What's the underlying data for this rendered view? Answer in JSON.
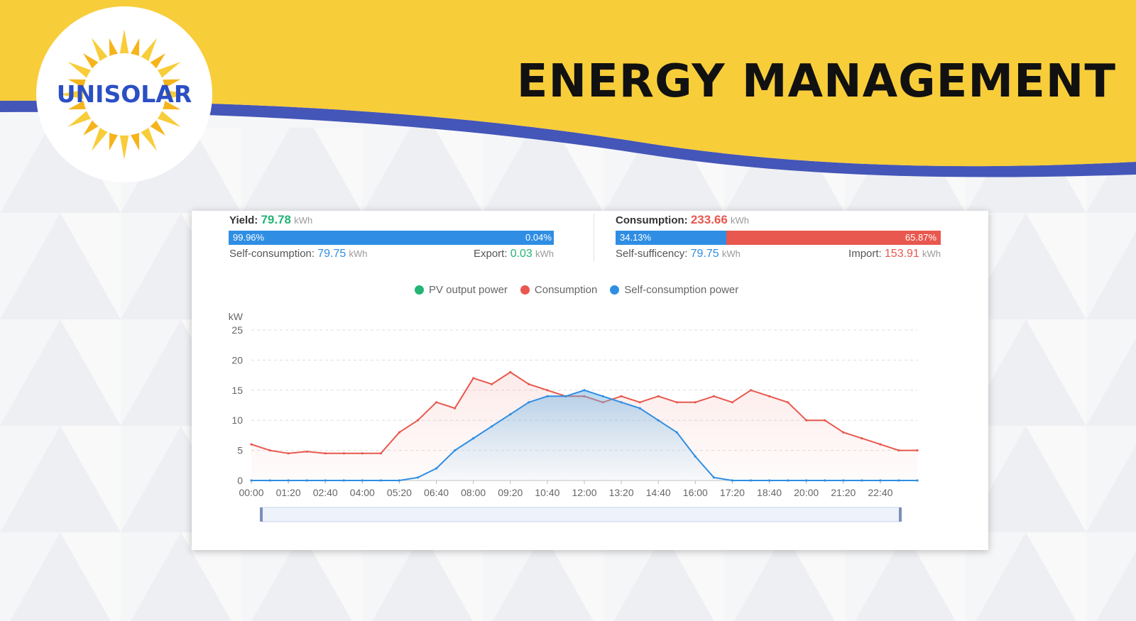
{
  "brand": {
    "logo_text": "UNISOLAR"
  },
  "headline": "ENERGY MANAGEMENT",
  "colors": {
    "yellow": "#f8cd3a",
    "blue_band": "#4456b8",
    "green": "#22b573",
    "red": "#e8584e",
    "blue": "#2f8ee3"
  },
  "summary": {
    "yield": {
      "label": "Yield:",
      "value": "79.78",
      "unit": "kWh",
      "bar": {
        "left_pct": "99.96%",
        "right_pct": "0.04%",
        "left_fraction": 0.9996
      },
      "self_consumption": {
        "label": "Self-consumption:",
        "value": "79.75",
        "unit": "kWh"
      },
      "export": {
        "label": "Export:",
        "value": "0.03",
        "unit": "kWh"
      }
    },
    "consumption": {
      "label": "Consumption:",
      "value": "233.66",
      "unit": "kWh",
      "bar": {
        "left_pct": "34.13%",
        "right_pct": "65.87%",
        "left_fraction": 0.3413
      },
      "self_sufficiency": {
        "label": "Self-sufficency:",
        "value": "79.75",
        "unit": "kWh"
      },
      "import": {
        "label": "Import:",
        "value": "153.91",
        "unit": "kWh"
      }
    }
  },
  "legend": [
    {
      "name": "PV output power",
      "color": "#22b573"
    },
    {
      "name": "Consumption",
      "color": "#e8584e"
    },
    {
      "name": "Self-consumption power",
      "color": "#2f8ee3"
    }
  ],
  "chart_data": {
    "type": "line",
    "ylabel": "kW",
    "ylim": [
      0,
      25
    ],
    "yticks": [
      0,
      5,
      10,
      15,
      20,
      25
    ],
    "xticks": [
      "00:00",
      "01:20",
      "02:40",
      "04:00",
      "05:20",
      "06:40",
      "08:00",
      "09:20",
      "10:40",
      "12:00",
      "13:20",
      "14:40",
      "16:00",
      "17:20",
      "18:40",
      "20:00",
      "21:20",
      "22:40"
    ],
    "x": [
      "00:00",
      "00:40",
      "01:20",
      "02:00",
      "02:40",
      "03:20",
      "04:00",
      "04:40",
      "05:20",
      "06:00",
      "06:40",
      "07:20",
      "08:00",
      "08:40",
      "09:20",
      "10:00",
      "10:40",
      "11:20",
      "12:00",
      "12:40",
      "13:20",
      "14:00",
      "14:40",
      "15:20",
      "16:00",
      "16:40",
      "17:20",
      "18:00",
      "18:40",
      "19:20",
      "20:00",
      "20:40",
      "21:20",
      "22:00",
      "22:40",
      "23:20",
      "24:00"
    ],
    "grid": true,
    "legend_position": "top",
    "series": [
      {
        "name": "Consumption",
        "color": "#e8584e",
        "values": [
          6,
          5,
          4.5,
          4.8,
          4.5,
          4.5,
          4.5,
          4.5,
          8,
          10,
          13,
          12,
          17,
          16,
          18,
          16,
          15,
          14,
          14,
          13,
          14,
          13,
          14,
          13,
          13,
          14,
          13,
          15,
          14,
          13,
          10,
          10,
          8,
          7,
          6,
          5,
          5
        ]
      },
      {
        "name": "Self-consumption power",
        "color": "#2f8ee3",
        "values": [
          0,
          0,
          0,
          0,
          0,
          0,
          0,
          0,
          0,
          0.5,
          2,
          5,
          7,
          9,
          11,
          13,
          14,
          14,
          15,
          14,
          13,
          12,
          10,
          8,
          4,
          0.5,
          0,
          0,
          0,
          0,
          0,
          0,
          0,
          0,
          0,
          0,
          0
        ]
      }
    ]
  }
}
